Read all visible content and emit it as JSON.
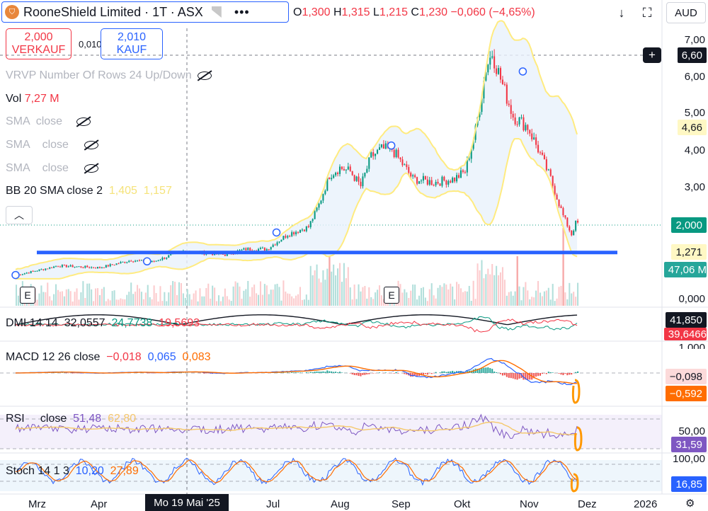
{
  "header": {
    "title": "RooneShield Limited · 1T · ASX",
    "logo": "shield-logo",
    "menu": "•••",
    "ohlc": [
      {
        "k": "O",
        "v": "1,300"
      },
      {
        "k": "H",
        "v": "1,315"
      },
      {
        "k": "L",
        "v": "1,215"
      },
      {
        "k": "C",
        "v": "1,230"
      }
    ],
    "change": "−0,060 (−4,65%)",
    "currency": "AUD"
  },
  "trade": {
    "sell_price": "2,000",
    "sell_label": "VERKAUF",
    "spread": "0,010",
    "buy_price": "2,010",
    "buy_label": "KAUF"
  },
  "legend": {
    "vrvp": "VRVP Number Of Rows 24 Up/Down",
    "vol_label": "Vol",
    "vol_value": "7,27 M",
    "sma1": "SMA",
    "sma1_src": "close",
    "sma2": "SMA",
    "sma2_src": "close",
    "sma3": "SMA",
    "sma3_src": "close",
    "bb": "BB 20 SMA close 2",
    "bb_v1": "1,405",
    "bb_v2": "1,157",
    "dmi": "DMI 14 14",
    "dmi_v1": "32,0557",
    "dmi_v2": "24,7738",
    "dmi_v3": "19,5693",
    "macd": "MACD 12 26 close",
    "macd_v1": "−0,018",
    "macd_v2": "0,065",
    "macd_v3": "0,083",
    "rsi": "RSI",
    "rsi_src": "close",
    "rsi_v1": "51,48",
    "rsi_v2": "62,80",
    "stoch": "Stoch 14 1 3",
    "stoch_v1": "10,20",
    "stoch_v2": "27,89"
  },
  "price_axis": {
    "ticks": [
      "7,00",
      "6,00",
      "5,00",
      "4,00",
      "3,00",
      "0,000"
    ],
    "crosshair_tag": "6,60",
    "bb_upper_tag": "4,66",
    "last_tag": "2,000",
    "bb_lower_tag": "1,271",
    "volume_tag": "47,06 M",
    "dmi_tag1": "41,850",
    "dmi_tag2": "39,6466",
    "macd_tick": "1,000",
    "macd_tag1": "−0,098",
    "macd_tag2": "−0,592",
    "rsi_tick": "50,00",
    "rsi_tag": "31,59",
    "stoch_tick": "100,00",
    "stoch_tag": "16,85"
  },
  "time_axis": {
    "labels": [
      "Mrz",
      "Apr",
      "Jul",
      "Aug",
      "Sep",
      "Okt",
      "Nov",
      "Dez",
      "2026"
    ],
    "selected": "Mo 19 Mai '25"
  },
  "earnings_marker": "E",
  "colors": {
    "up": "#089981",
    "down": "#f23645",
    "bb": "#ffeb80",
    "bb_fill": "#e8f1fb",
    "support": "#2962ff",
    "macd": "#2962ff",
    "signal": "#ff6d00",
    "rsi": "#7e57c2",
    "dmi_adx": "#131722"
  },
  "chart_data": {
    "type": "candlestick",
    "price_range": [
      0,
      7.4
    ],
    "support_level": 1.21,
    "price_path": [
      [
        0,
        0.6
      ],
      [
        20,
        0.85
      ],
      [
        40,
        0.8
      ],
      [
        55,
        1.0
      ],
      [
        65,
        0.95
      ],
      [
        80,
        1.25
      ],
      [
        100,
        1.15
      ],
      [
        110,
        1.3
      ],
      [
        120,
        1.3
      ],
      [
        125,
        1.5
      ],
      [
        130,
        1.7
      ],
      [
        140,
        1.9
      ],
      [
        145,
        2.5
      ],
      [
        150,
        3.3
      ],
      [
        155,
        3.5
      ],
      [
        160,
        3.4
      ],
      [
        165,
        3.0
      ],
      [
        170,
        3.8
      ],
      [
        175,
        4.0
      ],
      [
        180,
        4.0
      ],
      [
        185,
        3.6
      ],
      [
        190,
        3.2
      ],
      [
        200,
        3.1
      ],
      [
        210,
        3.2
      ],
      [
        215,
        3.4
      ],
      [
        220,
        4.5
      ],
      [
        225,
        6.2
      ],
      [
        228,
        6.6
      ],
      [
        232,
        5.9
      ],
      [
        238,
        4.9
      ],
      [
        245,
        4.6
      ],
      [
        250,
        4.0
      ],
      [
        256,
        3.2
      ],
      [
        262,
        2.2
      ],
      [
        266,
        1.7
      ],
      [
        268,
        2.0
      ]
    ]
  }
}
